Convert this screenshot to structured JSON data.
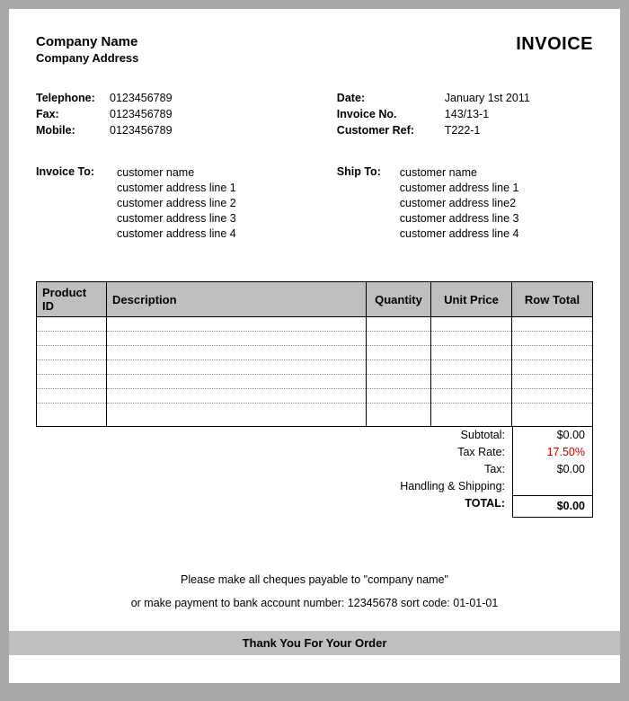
{
  "company": {
    "name": "Company Name",
    "address": "Company Address"
  },
  "title": "INVOICE",
  "contact": {
    "telephone_label": "Telephone:",
    "fax_label": "Fax:",
    "mobile_label": "Mobile:",
    "telephone": "0123456789",
    "fax": "0123456789",
    "mobile": "0123456789"
  },
  "meta": {
    "date_label": "Date:",
    "invoice_no_label": "Invoice No.",
    "cust_ref_label": "Customer Ref:",
    "date": "January 1st 2011",
    "invoice_no": "143/13-1",
    "cust_ref": "T222-1"
  },
  "invoice_to": {
    "label": "Invoice To:",
    "lines": {
      "l0": "customer name",
      "l1": "customer address line 1",
      "l2": "customer address line 2",
      "l3": "customer address line 3",
      "l4": "customer address line 4"
    }
  },
  "ship_to": {
    "label": "Ship To:",
    "lines": {
      "l0": "customer name",
      "l1": "customer address line 1",
      "l2": "customer address line2",
      "l3": "customer address line 3",
      "l4": "customer address line 4"
    }
  },
  "table": {
    "columns": {
      "pid": "Product ID",
      "desc": "Description",
      "qty": "Quantity",
      "price": "Unit Price",
      "total": "Row Total"
    },
    "empty_rows": 7,
    "header_bg": "#bfbfbf",
    "border_color": "#000000",
    "dotted_color": "#888888"
  },
  "totals": {
    "subtotal_label": "Subtotal:",
    "subtotal": "$0.00",
    "taxrate_label": "Tax Rate:",
    "taxrate": "17.50%",
    "tax_label": "Tax:",
    "tax": "$0.00",
    "handling_label": "Handling & Shipping:",
    "handling": "",
    "grand_label": "TOTAL:",
    "grand": "$0.00",
    "taxrate_color": "#c00000"
  },
  "payment": {
    "line1": "Please make all cheques payable to \"company name\"",
    "line2": "or make payment to bank account number: 12345678 sort code: 01-01-01"
  },
  "thanks": "Thank You For Your Order",
  "colors": {
    "page_bg": "#ffffff",
    "outer_bg": "#a9a9a9",
    "bar_bg": "#bfbfbf",
    "text": "#000000"
  }
}
